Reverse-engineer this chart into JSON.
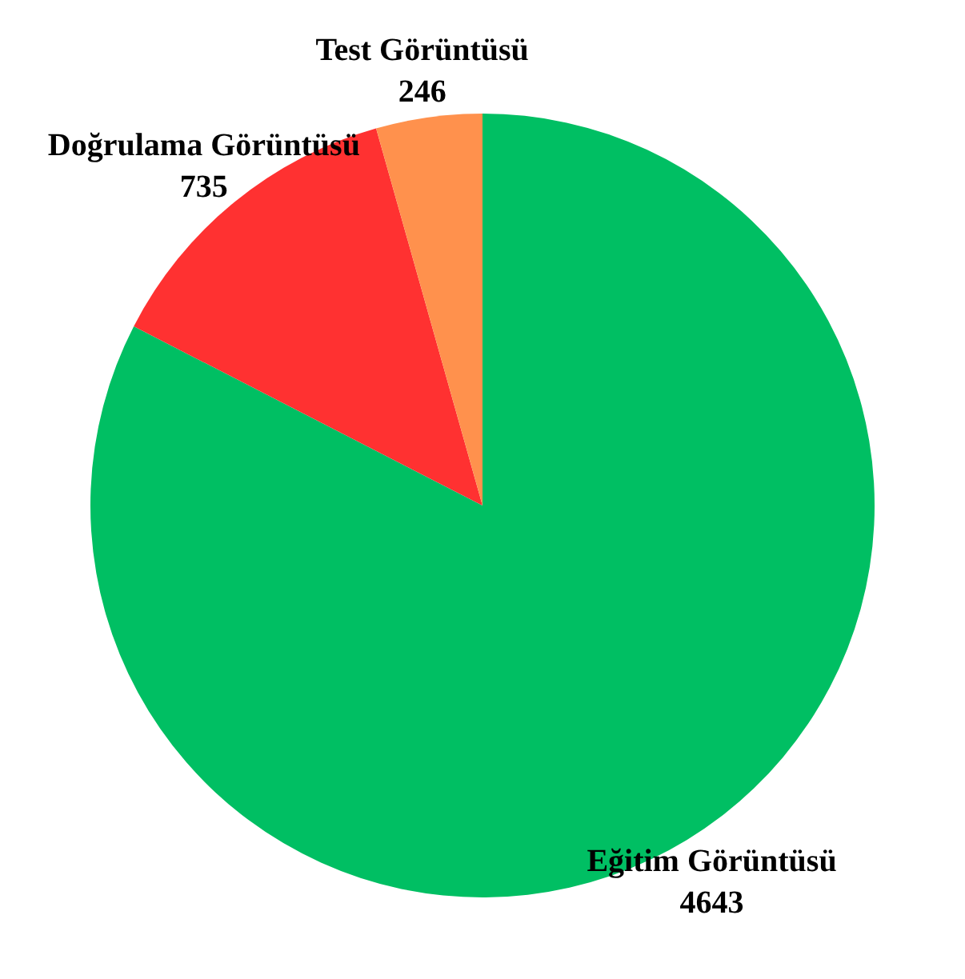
{
  "chart_data": {
    "type": "pie",
    "categories": [
      "Eğitim Görüntüsü",
      "Doğrulama Görüntüsü",
      "Test Görüntüsü"
    ],
    "values": [
      4643,
      735,
      246
    ],
    "colors": [
      "#00bf63",
      "#ff3131",
      "#ff914d"
    ],
    "data_labels": true
  }
}
